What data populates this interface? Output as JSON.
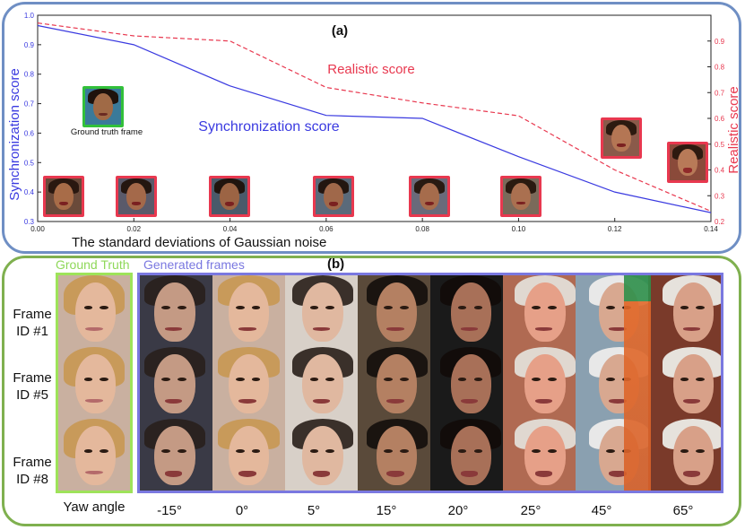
{
  "panel_a": {
    "label": "(a)",
    "curve_label_blue": "Synchronization score",
    "curve_label_red": "Realistic score",
    "gt_caption": "Ground truth frame"
  },
  "panel_b": {
    "label": "(b)",
    "ground_truth_title": "Ground Truth",
    "generated_title": "Generated frames",
    "row_labels": [
      {
        "line1": "Frame",
        "line2": "ID #1"
      },
      {
        "line1": "Frame",
        "line2": "ID #5"
      },
      {
        "line1": "Frame",
        "line2": "ID #8"
      }
    ],
    "yaw_label": "Yaw angle",
    "yaw_angles": [
      "-15°",
      "0°",
      "5°",
      "15°",
      "20°",
      "25°",
      "45°",
      "65°"
    ]
  },
  "colors": {
    "sync": "#3a3ae0",
    "real": "#e8384f",
    "gt_border": "#9ee35a",
    "gen_border": "#7a78e0"
  },
  "chart_data": {
    "type": "line",
    "title": "(a)",
    "xlabel": "The standard deviations of Gaussian noise",
    "ylabel": "Synchronization score",
    "y2label": "Realistic score",
    "xlim": [
      0.0,
      0.14
    ],
    "ylim": [
      0.3,
      1.0
    ],
    "y2lim": [
      0.2,
      1.0
    ],
    "xticks": [
      "0.00",
      "0.02",
      "0.04",
      "0.06",
      "0.08",
      "0.10",
      "0.12",
      "0.14"
    ],
    "yticks": [
      "0.3",
      "0.4",
      "0.5",
      "0.6",
      "0.7",
      "0.8",
      "0.9",
      "1.0"
    ],
    "y2ticks": [
      "0.2",
      "0.3",
      "0.4",
      "0.5",
      "0.6",
      "0.7",
      "0.8",
      "0.9"
    ],
    "series": [
      {
        "name": "Synchronization score",
        "axis": "left",
        "style": "solid",
        "x": [
          0.0,
          0.02,
          0.04,
          0.06,
          0.08,
          0.1,
          0.12,
          0.14
        ],
        "values": [
          0.965,
          0.9,
          0.76,
          0.66,
          0.65,
          0.52,
          0.4,
          0.33
        ]
      },
      {
        "name": "Realistic score",
        "axis": "right",
        "style": "dashed",
        "x": [
          0.0,
          0.02,
          0.04,
          0.06,
          0.08,
          0.1,
          0.12,
          0.14
        ],
        "values": [
          0.97,
          0.92,
          0.9,
          0.72,
          0.66,
          0.61,
          0.4,
          0.24
        ]
      }
    ]
  }
}
